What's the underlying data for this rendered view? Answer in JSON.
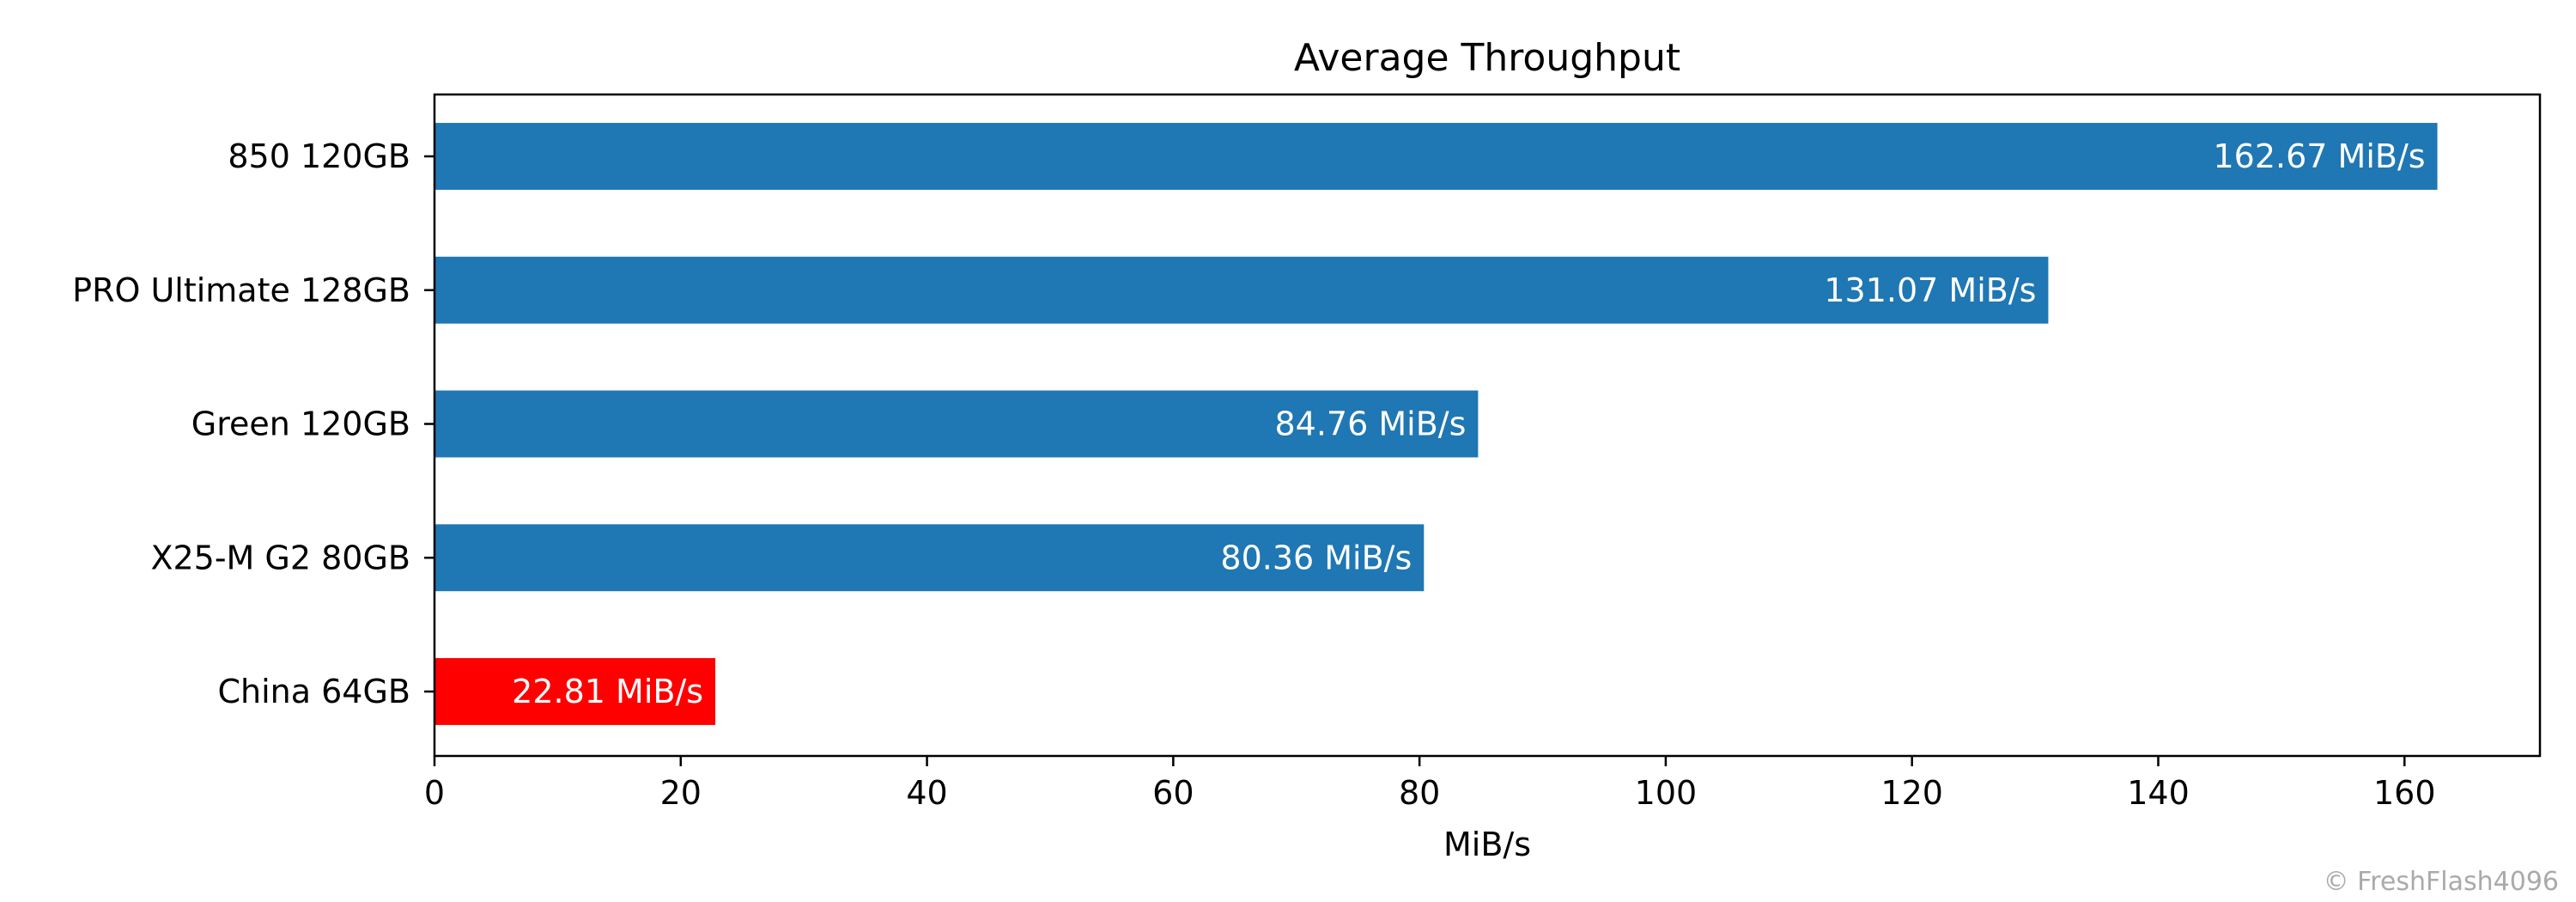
{
  "chart_data": {
    "type": "bar",
    "orientation": "horizontal",
    "title": "Average Throughput",
    "xlabel": "MiB/s",
    "ylabel": "",
    "xlim": [
      0,
      171
    ],
    "xticks": [
      0,
      20,
      40,
      60,
      80,
      100,
      120,
      140,
      160
    ],
    "grid": false,
    "categories": [
      "850 120GB",
      "PRO Ultimate 128GB",
      "Green 120GB",
      "X25-M G2 80GB",
      "China 64GB"
    ],
    "values": [
      162.67,
      131.07,
      84.76,
      80.36,
      22.81
    ],
    "value_labels": [
      "162.67 MiB/s",
      "131.07 MiB/s",
      "84.76 MiB/s",
      "80.36 MiB/s",
      "22.81 MiB/s"
    ],
    "colors": [
      "#1f77b4",
      "#1f77b4",
      "#1f77b4",
      "#1f77b4",
      "#ff0000"
    ]
  },
  "watermark": "© FreshFlash4096"
}
